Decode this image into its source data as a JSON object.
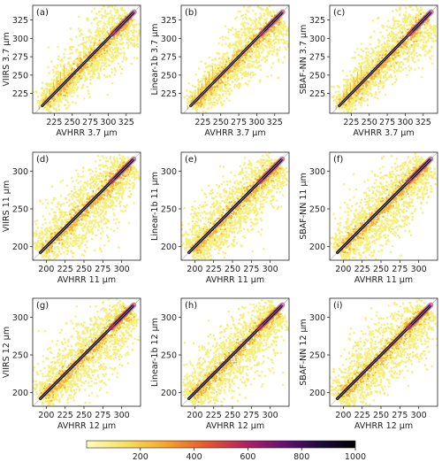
{
  "chart_data": [
    {
      "panel": "(a)",
      "type": "scatter",
      "xlabel": "AVHRR 3.7 µm",
      "ylabel": "VIIRS 3.7 µm",
      "xlim": [
        195,
        345
      ],
      "ylim": [
        198,
        345
      ],
      "xticks": [
        225,
        250,
        275,
        300,
        325
      ],
      "yticks": [
        225,
        250,
        275,
        300,
        325
      ],
      "one_to_one_line": true,
      "density_max": 1000,
      "step_artifacts": true
    },
    {
      "panel": "(b)",
      "type": "scatter",
      "xlabel": "AVHRR 3.7 µm",
      "ylabel": "Linear-1b 3.7 µm",
      "xlim": [
        195,
        345
      ],
      "ylim": [
        198,
        345
      ],
      "xticks": [
        225,
        250,
        275,
        300,
        325
      ],
      "yticks": [
        225,
        250,
        275,
        300,
        325
      ],
      "one_to_one_line": true,
      "density_max": 1000,
      "step_artifacts": true
    },
    {
      "panel": "(c)",
      "type": "scatter",
      "xlabel": "AVHRR 3.7 µm",
      "ylabel": "SBAF-NN 3.7 µm",
      "xlim": [
        195,
        345
      ],
      "ylim": [
        198,
        345
      ],
      "xticks": [
        225,
        250,
        275,
        300,
        325
      ],
      "yticks": [
        225,
        250,
        275,
        300,
        325
      ],
      "one_to_one_line": true,
      "density_max": 1000,
      "step_artifacts": true
    },
    {
      "panel": "(d)",
      "type": "scatter",
      "xlabel": "AVHRR 11 µm",
      "ylabel": "VIIRS 11 µm",
      "xlim": [
        182,
        325
      ],
      "ylim": [
        182,
        325
      ],
      "xticks": [
        200,
        225,
        250,
        275,
        300
      ],
      "yticks": [
        200,
        250,
        300
      ],
      "one_to_one_line": true,
      "density_max": 1000
    },
    {
      "panel": "(e)",
      "type": "scatter",
      "xlabel": "AVHRR 11 µm",
      "ylabel": "Linear-1b 11 µm",
      "xlim": [
        182,
        325
      ],
      "ylim": [
        182,
        325
      ],
      "xticks": [
        200,
        225,
        250,
        275,
        300
      ],
      "yticks": [
        200,
        250,
        300
      ],
      "one_to_one_line": true,
      "density_max": 1000
    },
    {
      "panel": "(f)",
      "type": "scatter",
      "xlabel": "AVHRR 11 µm",
      "ylabel": "SBAF-NN 11 µm",
      "xlim": [
        182,
        325
      ],
      "ylim": [
        182,
        325
      ],
      "xticks": [
        200,
        225,
        250,
        275,
        300
      ],
      "yticks": [
        200,
        250,
        300
      ],
      "one_to_one_line": true,
      "density_max": 1000
    },
    {
      "panel": "(g)",
      "type": "scatter",
      "xlabel": "AVHRR 12 µm",
      "ylabel": "VIIRS 12 µm",
      "xlim": [
        182,
        325
      ],
      "ylim": [
        182,
        325
      ],
      "xticks": [
        200,
        225,
        250,
        275,
        300
      ],
      "yticks": [
        200,
        250,
        300
      ],
      "one_to_one_line": true,
      "density_max": 1000
    },
    {
      "panel": "(h)",
      "type": "scatter",
      "xlabel": "AVHRR 12 µm",
      "ylabel": "Linear-1b 12 µm",
      "xlim": [
        182,
        325
      ],
      "ylim": [
        182,
        325
      ],
      "xticks": [
        200,
        225,
        250,
        275,
        300
      ],
      "yticks": [
        200,
        250,
        300
      ],
      "one_to_one_line": true,
      "density_max": 1000
    },
    {
      "panel": "(i)",
      "type": "scatter",
      "xlabel": "AVHRR 12 µm",
      "ylabel": "SBAF-NN 12 µm",
      "xlim": [
        182,
        325
      ],
      "ylim": [
        182,
        325
      ],
      "xticks": [
        200,
        225,
        250,
        275,
        300
      ],
      "yticks": [
        200,
        250,
        300
      ],
      "one_to_one_line": true,
      "density_max": 1000
    }
  ],
  "colorbar": {
    "ticks": [
      200,
      400,
      600,
      800,
      1000
    ],
    "range": [
      0,
      1000
    ],
    "colors": [
      "#fcfdbf",
      "#f6e05a",
      "#f8a12a",
      "#e8542a",
      "#b01f63",
      "#5c0f70",
      "#1a0a35",
      "#000004"
    ]
  }
}
